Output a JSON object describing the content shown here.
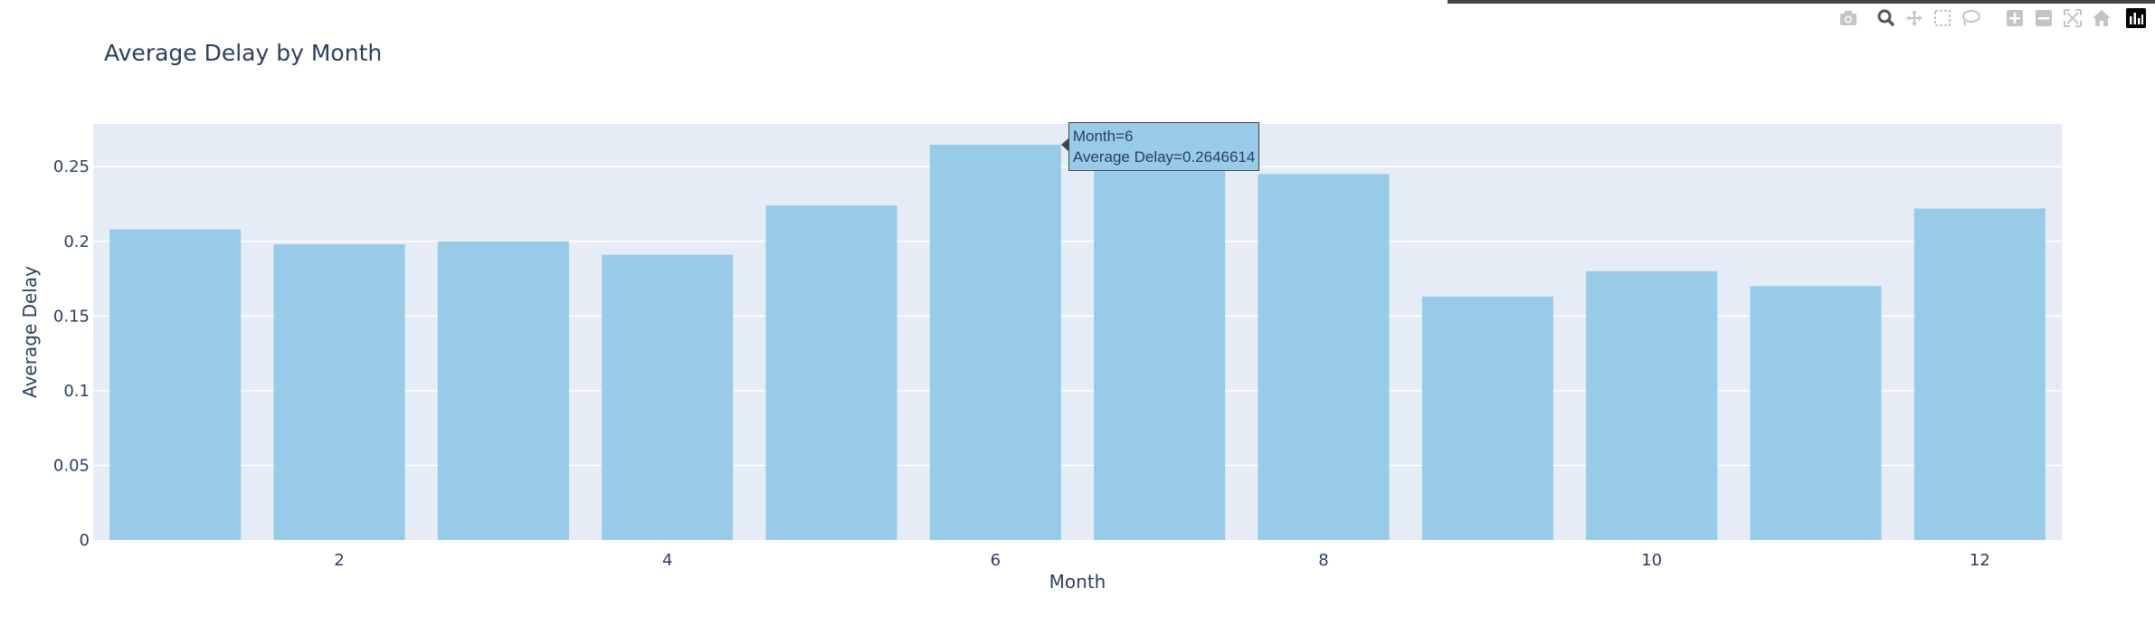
{
  "chart_data": {
    "type": "bar",
    "title": "Average Delay by Month",
    "xlabel": "Month",
    "ylabel": "Average Delay",
    "x": [
      1,
      2,
      3,
      4,
      5,
      6,
      7,
      8,
      9,
      10,
      11,
      12
    ],
    "values": [
      0.208,
      0.198,
      0.2,
      0.191,
      0.224,
      0.2646614,
      0.247,
      0.245,
      0.163,
      0.18,
      0.17,
      0.222
    ],
    "xticks": [
      "2",
      "4",
      "6",
      "8",
      "10",
      "12"
    ],
    "xtick_values": [
      2,
      4,
      6,
      8,
      10,
      12
    ],
    "yticks": [
      "0",
      "0.05",
      "0.1",
      "0.15",
      "0.2",
      "0.25"
    ],
    "ytick_values": [
      0,
      0.05,
      0.1,
      0.15,
      0.2,
      0.25
    ],
    "ylim": [
      0,
      0.2786
    ],
    "xlim": [
      0.5,
      12.5
    ],
    "grid": true,
    "colors": {
      "bar": "#97cbe8",
      "plot_bg": "#e5ecf6",
      "grid": "#ffffff",
      "text": "#2a3f5f"
    }
  },
  "tooltip": {
    "line1": "Month=6",
    "line2": "Average Delay=0.2646614"
  },
  "modebar": [
    {
      "icon": "camera-icon"
    },
    {
      "icon": "zoom-icon"
    },
    {
      "icon": "pan-icon"
    },
    {
      "icon": "box-select-icon"
    },
    {
      "icon": "lasso-icon"
    },
    {
      "icon": "zoom-in-icon"
    },
    {
      "icon": "zoom-out-icon"
    },
    {
      "icon": "autoscale-icon"
    },
    {
      "icon": "home-icon"
    },
    {
      "icon": "plotly-logo-icon"
    }
  ]
}
